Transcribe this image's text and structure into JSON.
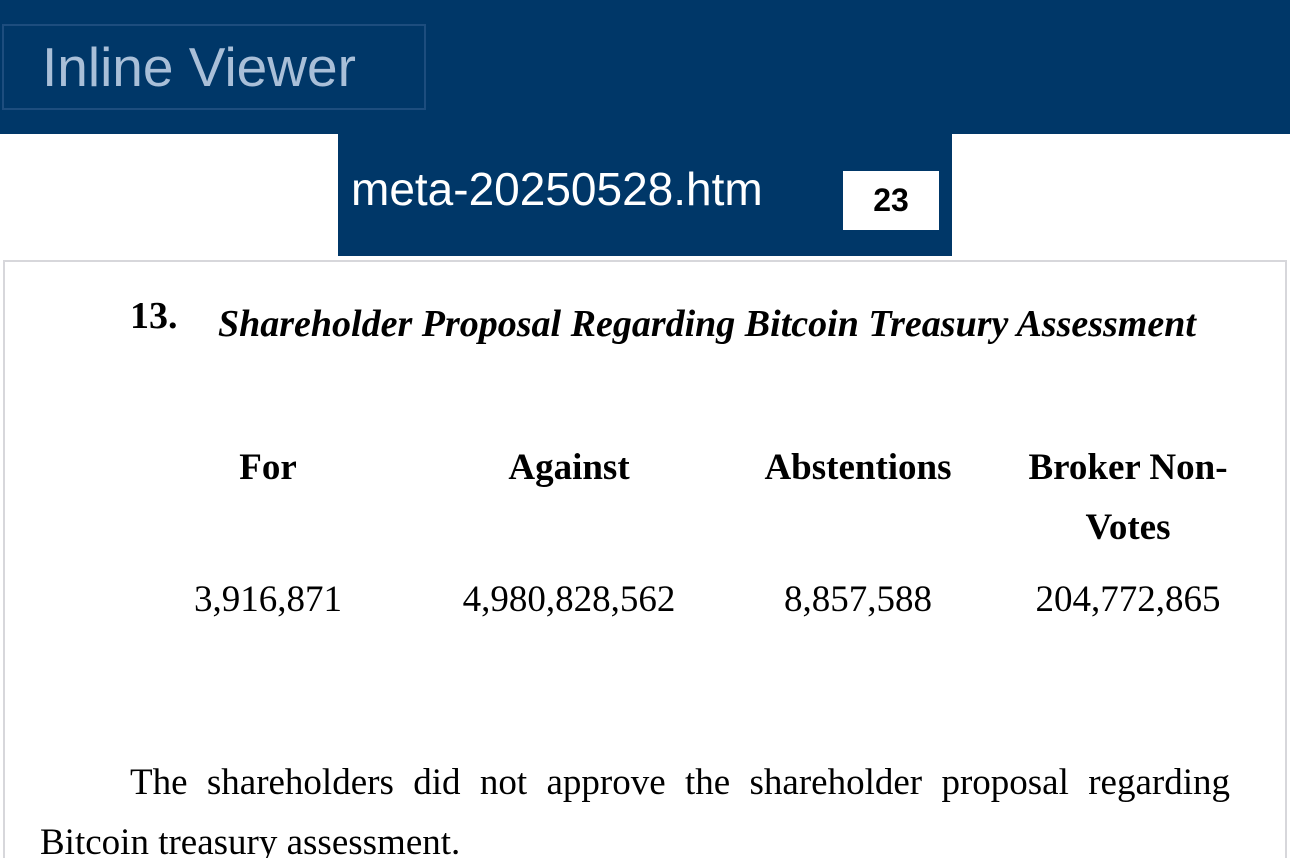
{
  "app": {
    "title": "Inline Viewer"
  },
  "file_tab": {
    "name": "meta-20250528.htm",
    "count": "23"
  },
  "document": {
    "item_number": "13.",
    "item_title": "Shareholder Proposal Regarding Bitcoin Treasury Assessment",
    "vote_headers": [
      "For",
      "Against",
      "Abstentions",
      "Broker Non-Votes"
    ],
    "vote_values": [
      "3,916,871",
      "4,980,828,562",
      "8,857,588",
      "204,772,865"
    ],
    "result_text": "The shareholders did not approve the shareholder proposal regarding Bitcoin treasury assessment."
  },
  "colors": {
    "header_background": "#003768",
    "title_text": "#a9bfd8",
    "frame_border": "#d7d7db"
  }
}
